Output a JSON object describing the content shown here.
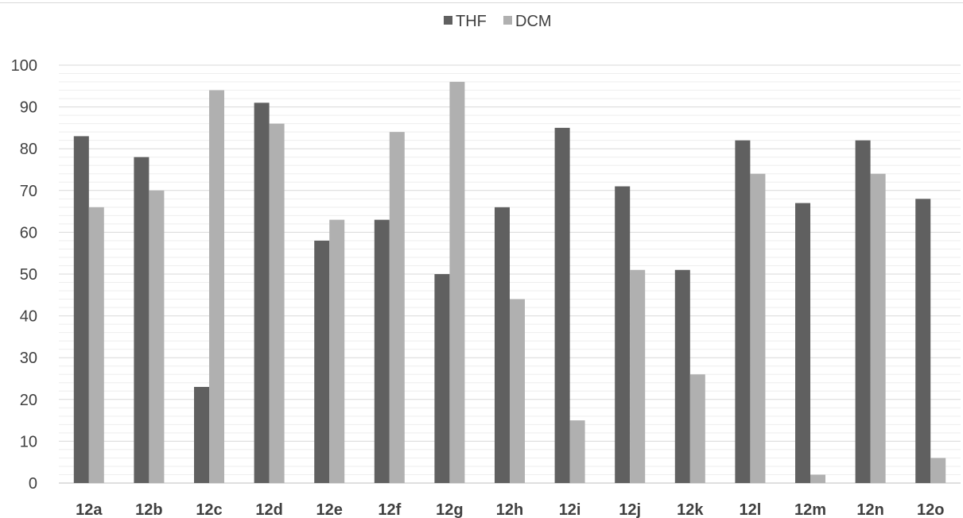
{
  "chart_data": {
    "type": "bar",
    "title": "",
    "xlabel": "",
    "ylabel": "",
    "categories": [
      "12a",
      "12b",
      "12c",
      "12d",
      "12e",
      "12f",
      "12g",
      "12h",
      "12i",
      "12j",
      "12k",
      "12l",
      "12m",
      "12n",
      "12o"
    ],
    "series": [
      {
        "name": "THF",
        "color": "#606060",
        "values": [
          83,
          78,
          23,
          91,
          58,
          63,
          50,
          66,
          85,
          71,
          51,
          82,
          67,
          82,
          68
        ]
      },
      {
        "name": "DCM",
        "color": "#b0b0b0",
        "values": [
          66,
          70,
          94,
          86,
          63,
          84,
          96,
          44,
          15,
          51,
          26,
          74,
          2,
          74,
          6
        ]
      }
    ],
    "ylim": [
      0,
      100
    ],
    "yticks": [
      0,
      10,
      20,
      30,
      40,
      50,
      60,
      70,
      80,
      90,
      100
    ],
    "minor_gridlines": true,
    "legend_position": "top-center",
    "gridline_color": "#d9d9d9"
  }
}
